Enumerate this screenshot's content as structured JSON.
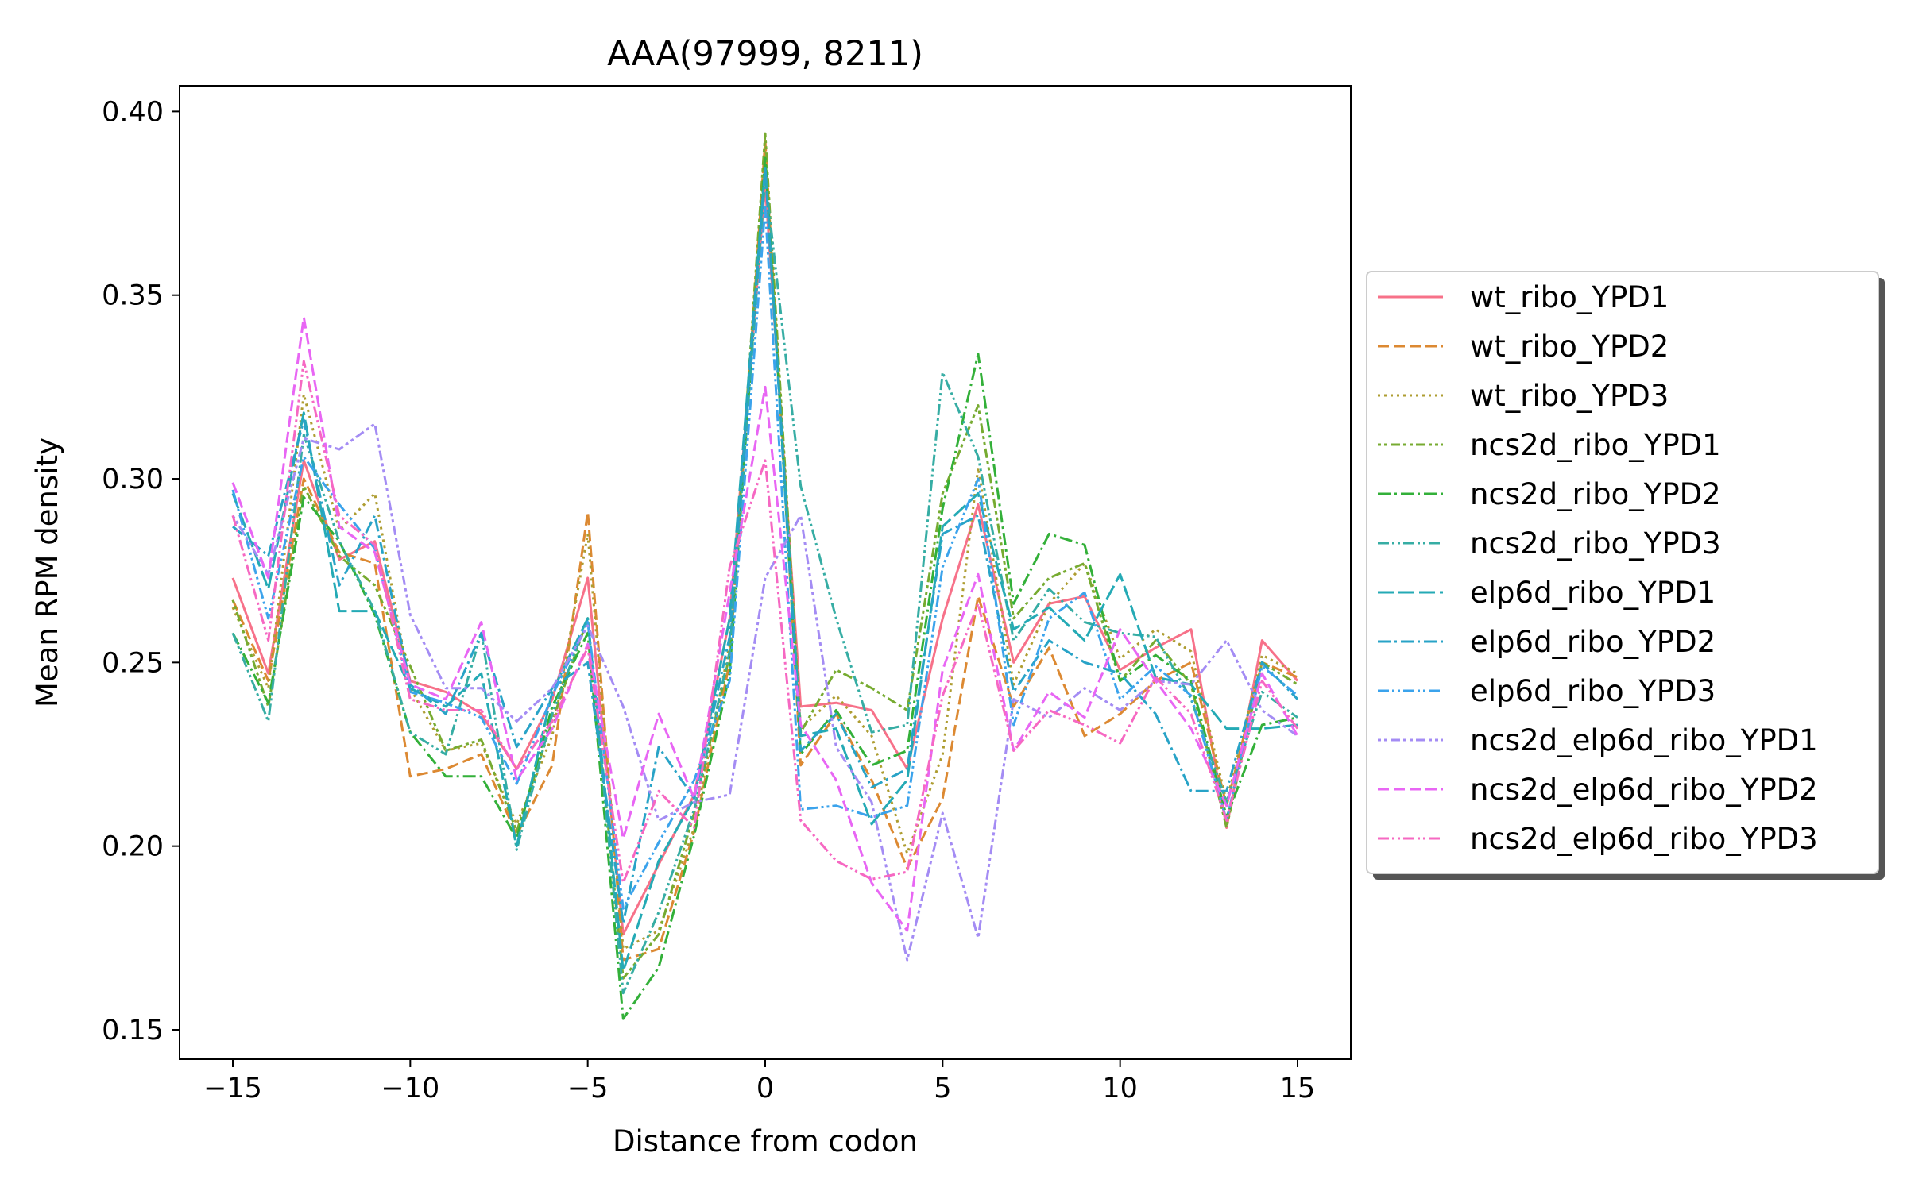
{
  "chart_data": {
    "type": "line",
    "title": "AAA(97999, 8211)",
    "xlabel": "Distance from codon",
    "ylabel": "Mean RPM density",
    "xlim": [
      -16.5,
      16.5
    ],
    "ylim": [
      0.142,
      0.407
    ],
    "xticks": [
      -15,
      -10,
      -5,
      0,
      5,
      10,
      15
    ],
    "xtick_labels": [
      "−15",
      "−10",
      "−5",
      "0",
      "5",
      "10",
      "15"
    ],
    "yticks": [
      0.15,
      0.2,
      0.25,
      0.3,
      0.35,
      0.4
    ],
    "ytick_labels": [
      "0.15",
      "0.20",
      "0.25",
      "0.30",
      "0.35",
      "0.40"
    ],
    "grid": false,
    "legend_position": "outside-right",
    "x": [
      -15,
      -14,
      -13,
      -12,
      -11,
      -10,
      -9,
      -8,
      -7,
      -6,
      -5,
      -4,
      -3,
      -2,
      -1,
      0,
      1,
      2,
      3,
      4,
      5,
      6,
      7,
      8,
      9,
      10,
      11,
      12,
      13,
      14,
      15
    ],
    "series": [
      {
        "name": "wt_ribo_YPD1",
        "color": "#f77189",
        "dash": "solid",
        "values": [
          0.273,
          0.247,
          0.305,
          0.278,
          0.283,
          0.245,
          0.242,
          0.236,
          0.221,
          0.24,
          0.273,
          0.176,
          0.195,
          0.214,
          0.262,
          0.38,
          0.238,
          0.239,
          0.237,
          0.221,
          0.262,
          0.293,
          0.25,
          0.266,
          0.268,
          0.248,
          0.254,
          0.259,
          0.205,
          0.256,
          0.245
        ]
      },
      {
        "name": "wt_ribo_YPD2",
        "color": "#dc8932",
        "dash": "dashed",
        "values": [
          0.267,
          0.245,
          0.3,
          0.28,
          0.277,
          0.219,
          0.221,
          0.225,
          0.203,
          0.222,
          0.291,
          0.169,
          0.172,
          0.204,
          0.25,
          0.392,
          0.222,
          0.236,
          0.218,
          0.194,
          0.213,
          0.268,
          0.238,
          0.254,
          0.23,
          0.236,
          0.245,
          0.25,
          0.211,
          0.25,
          0.246
        ]
      },
      {
        "name": "wt_ribo_YPD3",
        "color": "#ae9d31",
        "dash": "dotted",
        "values": [
          0.265,
          0.243,
          0.323,
          0.286,
          0.296,
          0.243,
          0.226,
          0.228,
          0.206,
          0.23,
          0.285,
          0.172,
          0.177,
          0.205,
          0.255,
          0.389,
          0.232,
          0.241,
          0.23,
          0.198,
          0.225,
          0.303,
          0.244,
          0.266,
          0.277,
          0.251,
          0.259,
          0.253,
          0.212,
          0.252,
          0.247
        ]
      },
      {
        "name": "ncs2d_ribo_YPD1",
        "color": "#77ab31",
        "dash": "densedot",
        "values": [
          0.267,
          0.238,
          0.298,
          0.279,
          0.271,
          0.249,
          0.226,
          0.229,
          0.204,
          0.234,
          0.262,
          0.164,
          0.176,
          0.209,
          0.252,
          0.394,
          0.231,
          0.248,
          0.243,
          0.237,
          0.296,
          0.32,
          0.262,
          0.273,
          0.277,
          0.245,
          0.256,
          0.244,
          0.205,
          0.25,
          0.244
        ]
      },
      {
        "name": "ncs2d_ribo_YPD2",
        "color": "#33b039",
        "dash": "dashdot",
        "values": [
          0.258,
          0.239,
          0.295,
          0.283,
          0.263,
          0.231,
          0.219,
          0.219,
          0.202,
          0.238,
          0.258,
          0.153,
          0.167,
          0.203,
          0.247,
          0.388,
          0.225,
          0.237,
          0.222,
          0.226,
          0.292,
          0.334,
          0.266,
          0.285,
          0.282,
          0.245,
          0.252,
          0.245,
          0.208,
          0.233,
          0.235
        ]
      },
      {
        "name": "ncs2d_ribo_YPD3",
        "color": "#36ada4",
        "dash": "dashdotdot",
        "values": [
          0.258,
          0.234,
          0.312,
          0.283,
          0.264,
          0.231,
          0.225,
          0.258,
          0.199,
          0.236,
          0.262,
          0.16,
          0.182,
          0.21,
          0.253,
          0.382,
          0.298,
          0.262,
          0.231,
          0.233,
          0.329,
          0.306,
          0.256,
          0.27,
          0.261,
          0.258,
          0.257,
          0.24,
          0.212,
          0.242,
          0.235
        ]
      },
      {
        "name": "elp6d_ribo_YPD1",
        "color": "#24aab5",
        "dash": "longdash",
        "values": [
          0.296,
          0.27,
          0.318,
          0.264,
          0.264,
          0.243,
          0.238,
          0.247,
          0.2,
          0.242,
          0.262,
          0.166,
          0.196,
          0.213,
          0.262,
          0.385,
          0.23,
          0.232,
          0.206,
          0.218,
          0.287,
          0.296,
          0.259,
          0.265,
          0.256,
          0.274,
          0.246,
          0.244,
          0.232,
          0.232,
          0.233
        ]
      },
      {
        "name": "elp6d_ribo_YPD2",
        "color": "#28a3c7",
        "dash": "dashdot",
        "values": [
          0.287,
          0.279,
          0.316,
          0.271,
          0.29,
          0.244,
          0.236,
          0.258,
          0.227,
          0.243,
          0.25,
          0.179,
          0.227,
          0.213,
          0.257,
          0.385,
          0.226,
          0.236,
          0.216,
          0.221,
          0.285,
          0.29,
          0.242,
          0.256,
          0.25,
          0.247,
          0.236,
          0.215,
          0.215,
          0.25,
          0.24
        ]
      },
      {
        "name": "elp6d_ribo_YPD3",
        "color": "#3ba3ec",
        "dash": "dashdotdot",
        "values": [
          0.297,
          0.262,
          0.306,
          0.293,
          0.281,
          0.242,
          0.239,
          0.235,
          0.217,
          0.241,
          0.261,
          0.183,
          0.201,
          0.218,
          0.245,
          0.374,
          0.21,
          0.211,
          0.208,
          0.211,
          0.276,
          0.3,
          0.233,
          0.262,
          0.269,
          0.24,
          0.249,
          0.241,
          0.207,
          0.249,
          0.241
        ]
      },
      {
        "name": "ncs2d_elp6d_ribo_YPD1",
        "color": "#a48cf4",
        "dash": "densedot",
        "values": [
          0.29,
          0.274,
          0.311,
          0.308,
          0.315,
          0.263,
          0.243,
          0.243,
          0.234,
          0.243,
          0.26,
          0.238,
          0.207,
          0.212,
          0.214,
          0.273,
          0.29,
          0.227,
          0.212,
          0.169,
          0.209,
          0.175,
          0.24,
          0.235,
          0.243,
          0.237,
          0.245,
          0.244,
          0.256,
          0.237,
          0.23
        ]
      },
      {
        "name": "ncs2d_elp6d_ribo_YPD2",
        "color": "#e866f4",
        "dash": "dashed",
        "values": [
          0.299,
          0.273,
          0.344,
          0.287,
          0.28,
          0.244,
          0.24,
          0.261,
          0.218,
          0.232,
          0.255,
          0.202,
          0.236,
          0.213,
          0.269,
          0.325,
          0.233,
          0.218,
          0.19,
          0.177,
          0.248,
          0.274,
          0.226,
          0.242,
          0.235,
          0.259,
          0.245,
          0.232,
          0.211,
          0.247,
          0.23
        ]
      },
      {
        "name": "ncs2d_elp6d_ribo_YPD3",
        "color": "#f668c2",
        "dash": "dashdotdot",
        "values": [
          0.29,
          0.256,
          0.332,
          0.29,
          0.282,
          0.24,
          0.237,
          0.237,
          0.221,
          0.234,
          0.254,
          0.19,
          0.215,
          0.205,
          0.276,
          0.305,
          0.207,
          0.196,
          0.191,
          0.193,
          0.241,
          0.266,
          0.226,
          0.237,
          0.233,
          0.228,
          0.246,
          0.236,
          0.207,
          0.245,
          0.232
        ]
      }
    ]
  }
}
